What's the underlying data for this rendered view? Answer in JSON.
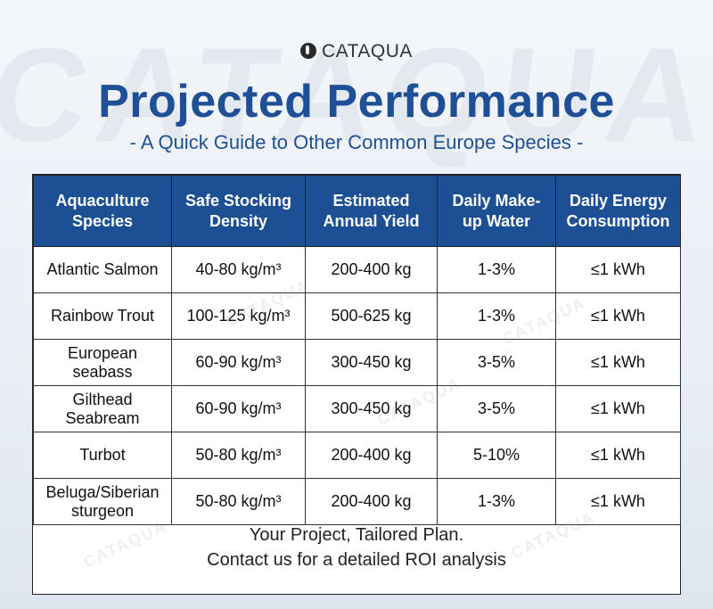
{
  "watermark": "CATAQUA",
  "brand": "CATAQUA",
  "title": "Projected Performance",
  "subtitle": "- A Quick Guide to Other Common Europe Species -",
  "table": {
    "headers": [
      {
        "line1": "Aquaculture",
        "line2": "Species"
      },
      {
        "line1": "Safe Stocking",
        "line2": "Density"
      },
      {
        "line1": "Estimated",
        "line2": "Annual Yield"
      },
      {
        "line1": "Daily Make-",
        "line2": "up Water"
      },
      {
        "line1": "Daily Energy",
        "line2": "Consumption"
      }
    ],
    "rows": [
      {
        "species": "Atlantic Salmon",
        "density": "40-80 kg/m³",
        "yield": "200-400 kg",
        "water": "1-3%",
        "energy": "≤1 kWh"
      },
      {
        "species": "Rainbow Trout",
        "density": "100-125 kg/m³",
        "yield": "500-625 kg",
        "water": "1-3%",
        "energy": "≤1 kWh"
      },
      {
        "species": "European seabass",
        "density": "60-90 kg/m³",
        "yield": "300-450 kg",
        "water": "3-5%",
        "energy": "≤1 kWh"
      },
      {
        "species": "Gilthead Seabream",
        "density": "60-90 kg/m³",
        "yield": "300-450 kg",
        "water": "3-5%",
        "energy": "≤1 kWh"
      },
      {
        "species": "Turbot",
        "density": "50-80 kg/m³",
        "yield": "200-400 kg",
        "water": "5-10%",
        "energy": "≤1 kWh"
      },
      {
        "species": "Beluga/Siberian sturgeon",
        "density": "50-80 kg/m³",
        "yield": "200-400 kg",
        "water": "1-3%",
        "energy": "≤1 kWh"
      }
    ]
  },
  "footer": {
    "line1": "Your Project, Tailored Plan.",
    "line2": "Contact us for a detailed ROI analysis"
  }
}
